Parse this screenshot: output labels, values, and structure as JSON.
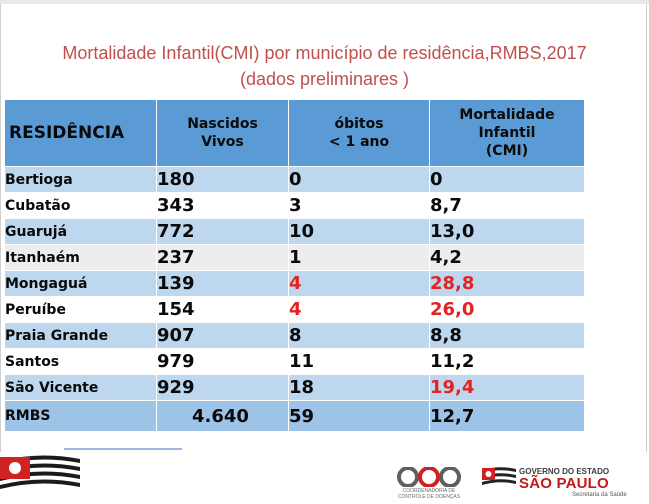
{
  "title": {
    "line1": "Mortalidade Infantil(CMI)  por município de residência,RMBS,2017",
    "line2": "(dados preliminares )"
  },
  "colors": {
    "title": "#c0504d",
    "header_bg": "#5b9bd5",
    "row_light": "#bdd7ee",
    "highlight_red": "#e32222"
  },
  "table": {
    "headers": {
      "residencia": "RESIDÊNCIA",
      "nascidos_line1": "Nascidos",
      "nascidos_line2": "Vivos",
      "obitos_line1": "óbitos",
      "obitos_line2": "< 1 ano",
      "cmi_line1": "Mortalidade",
      "cmi_line2": "Infantil",
      "cmi_line3": "(CMI)"
    },
    "rows": [
      {
        "municipio": "Bertioga",
        "nascidos": "180",
        "obitos": "0",
        "cmi": "0"
      },
      {
        "municipio": "Cubatão",
        "nascidos": "343",
        "obitos": "3",
        "cmi": "8,7"
      },
      {
        "municipio": "Guarujá",
        "nascidos": "772",
        "obitos": "10",
        "cmi": "13,0"
      },
      {
        "municipio": "Itanhaém",
        "nascidos": "237",
        "obitos": "1",
        "cmi": "4,2"
      },
      {
        "municipio": "Mongaguá",
        "nascidos": "139",
        "obitos": "4",
        "cmi": "28,8"
      },
      {
        "municipio": "Peruíbe",
        "nascidos": "154",
        "obitos": "4",
        "cmi": "26,0"
      },
      {
        "municipio": "Praia Grande",
        "nascidos": "907",
        "obitos": "8",
        "cmi": "8,8"
      },
      {
        "municipio": "Santos",
        "nascidos": "979",
        "obitos": "11",
        "cmi": "11,2"
      },
      {
        "municipio": "São Vicente",
        "nascidos": "929",
        "obitos": "18",
        "cmi": "19,4"
      }
    ],
    "total": {
      "municipio": "RMBS",
      "nascidos": "4.640",
      "obitos": "59",
      "cmi": "12,7"
    }
  },
  "footer": {
    "ccd_line1": "COORDENADORIA DE",
    "ccd_line2": "CONTROLE DE DOENÇAS",
    "gov_line1": "GOVERNO DO ESTADO",
    "gov_line2": "SÃO PAULO",
    "gov_line3": "Secretaria da Saúde"
  }
}
